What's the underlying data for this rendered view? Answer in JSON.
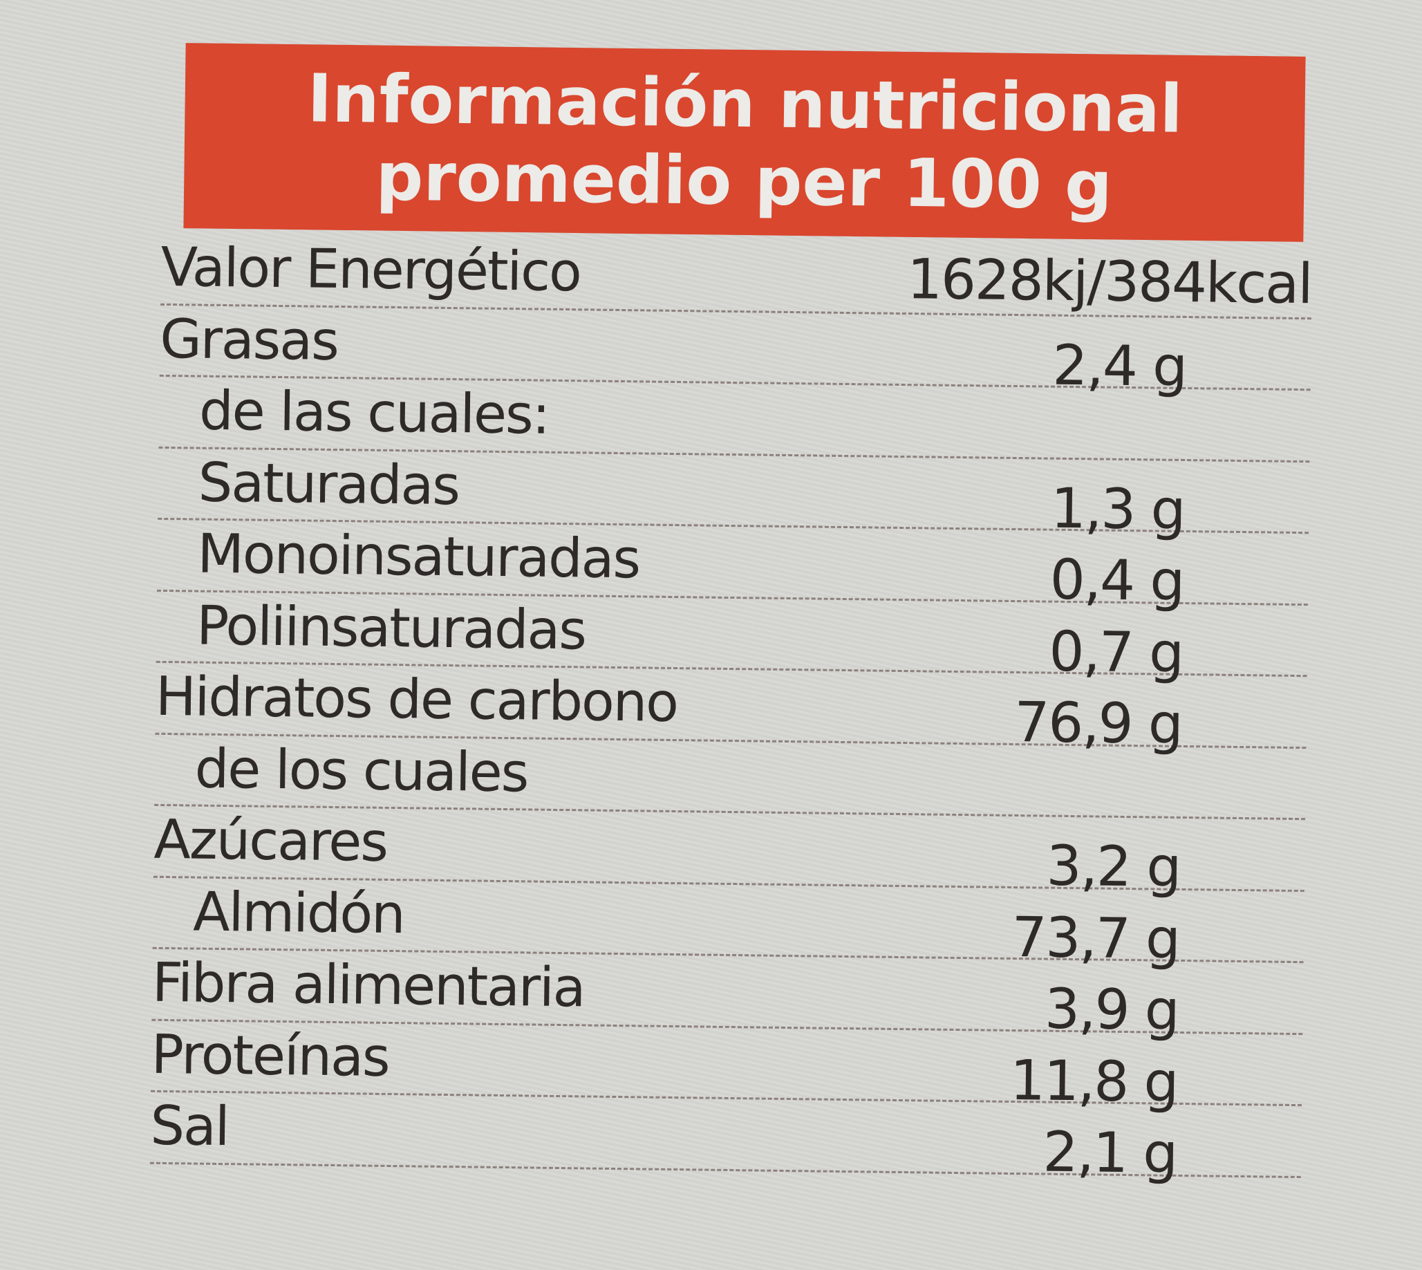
{
  "colors": {
    "header_bg": "#d9472e",
    "header_text": "#ecebe8",
    "background": "#d6d6d3"
  },
  "header": {
    "line1": "Información nutricional",
    "line2": "promedio per 100 g"
  },
  "rows": [
    {
      "label": "Valor Energético",
      "value": "1628kj/384kcal"
    },
    {
      "label": "Grasas",
      "value": "2,4 g"
    },
    {
      "label": "de las cuales:",
      "value": ""
    },
    {
      "label": "Saturadas",
      "value": "1,3 g"
    },
    {
      "label": "Monoinsaturadas",
      "value": "0,4 g"
    },
    {
      "label": "Poliinsaturadas",
      "value": "0,7 g"
    },
    {
      "label": "Hidratos de carbono",
      "value": "76,9 g"
    },
    {
      "label": "de los cuales",
      "value": ""
    },
    {
      "label": "Azúcares",
      "value": "3,2 g"
    },
    {
      "label": "Almidón",
      "value": "73,7 g"
    },
    {
      "label": "Fibra alimentaria",
      "value": "3,9 g"
    },
    {
      "label": "Proteínas",
      "value": "11,8 g"
    },
    {
      "label": "Sal",
      "value": "2,1 g"
    }
  ]
}
